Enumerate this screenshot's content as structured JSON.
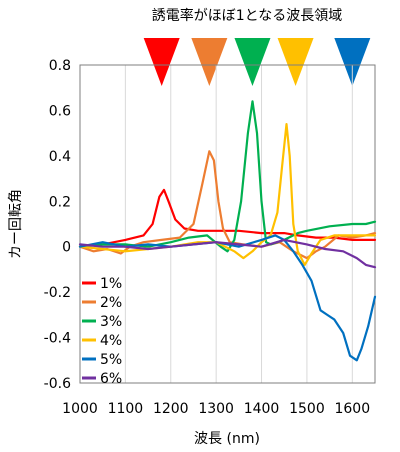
{
  "chart_data": {
    "type": "line",
    "title": "誘電率がほぼ1となる波長領域",
    "xlabel": "波長 (nm)",
    "ylabel": "カー回転角",
    "xlim": [
      1000,
      1650
    ],
    "ylim": [
      -0.6,
      0.8
    ],
    "xticks": [
      1000,
      1100,
      1200,
      1300,
      1400,
      1500,
      1600
    ],
    "xtick_labels": [
      "1000",
      "1100",
      "1200",
      "1300",
      "1400",
      "1500",
      "1600"
    ],
    "yticks": [
      -0.6,
      -0.4,
      -0.2,
      0,
      0.2,
      0.4,
      0.6,
      0.8
    ],
    "ytick_labels": [
      "-0.6",
      "-0.4",
      "-0.2",
      "0",
      "0.2",
      "0.4",
      "0.6",
      "0.8"
    ],
    "grid": "vertical",
    "legend_position": "bottom-left",
    "markers": [
      {
        "x": 1180,
        "color": "#ff0000"
      },
      {
        "x": 1285,
        "color": "#ed7d31"
      },
      {
        "x": 1380,
        "color": "#00b050"
      },
      {
        "x": 1475,
        "color": "#ffc000"
      },
      {
        "x": 1600,
        "color": "#0070c0"
      }
    ],
    "series": [
      {
        "name": "1%",
        "color": "#ff0000",
        "points": [
          [
            1000,
            0.0
          ],
          [
            1050,
            0.01
          ],
          [
            1100,
            0.03
          ],
          [
            1140,
            0.05
          ],
          [
            1160,
            0.1
          ],
          [
            1175,
            0.22
          ],
          [
            1185,
            0.25
          ],
          [
            1195,
            0.2
          ],
          [
            1210,
            0.12
          ],
          [
            1230,
            0.08
          ],
          [
            1260,
            0.07
          ],
          [
            1300,
            0.07
          ],
          [
            1350,
            0.07
          ],
          [
            1400,
            0.06
          ],
          [
            1450,
            0.06
          ],
          [
            1480,
            0.05
          ],
          [
            1520,
            0.04
          ],
          [
            1560,
            0.04
          ],
          [
            1600,
            0.03
          ],
          [
            1650,
            0.03
          ]
        ]
      },
      {
        "name": "2%",
        "color": "#ed7d31",
        "points": [
          [
            1000,
            0.0
          ],
          [
            1030,
            -0.02
          ],
          [
            1060,
            -0.01
          ],
          [
            1090,
            -0.03
          ],
          [
            1110,
            0.0
          ],
          [
            1140,
            0.02
          ],
          [
            1180,
            0.03
          ],
          [
            1220,
            0.04
          ],
          [
            1250,
            0.1
          ],
          [
            1270,
            0.28
          ],
          [
            1285,
            0.42
          ],
          [
            1295,
            0.38
          ],
          [
            1305,
            0.2
          ],
          [
            1315,
            0.08
          ],
          [
            1330,
            0.02
          ],
          [
            1360,
            0.01
          ],
          [
            1400,
            0.0
          ],
          [
            1440,
            0.02
          ],
          [
            1470,
            -0.02
          ],
          [
            1500,
            -0.05
          ],
          [
            1520,
            -0.02
          ],
          [
            1540,
            0.0
          ],
          [
            1570,
            0.05
          ],
          [
            1600,
            0.04
          ],
          [
            1630,
            0.05
          ],
          [
            1650,
            0.06
          ]
        ]
      },
      {
        "name": "3%",
        "color": "#00b050",
        "points": [
          [
            1000,
            0.0
          ],
          [
            1050,
            0.01
          ],
          [
            1100,
            0.01
          ],
          [
            1150,
            0.0
          ],
          [
            1200,
            0.02
          ],
          [
            1240,
            0.04
          ],
          [
            1280,
            0.05
          ],
          [
            1310,
            0.0
          ],
          [
            1325,
            -0.02
          ],
          [
            1340,
            0.03
          ],
          [
            1355,
            0.2
          ],
          [
            1370,
            0.5
          ],
          [
            1380,
            0.64
          ],
          [
            1390,
            0.5
          ],
          [
            1400,
            0.2
          ],
          [
            1410,
            0.02
          ],
          [
            1420,
            0.01
          ],
          [
            1450,
            0.03
          ],
          [
            1480,
            0.06
          ],
          [
            1500,
            0.07
          ],
          [
            1550,
            0.09
          ],
          [
            1600,
            0.1
          ],
          [
            1630,
            0.1
          ],
          [
            1650,
            0.11
          ]
        ]
      },
      {
        "name": "4%",
        "color": "#ffc000",
        "points": [
          [
            1000,
            0.0
          ],
          [
            1050,
            -0.01
          ],
          [
            1100,
            -0.02
          ],
          [
            1150,
            -0.01
          ],
          [
            1200,
            0.0
          ],
          [
            1260,
            0.02
          ],
          [
            1300,
            0.02
          ],
          [
            1340,
            -0.02
          ],
          [
            1360,
            -0.05
          ],
          [
            1380,
            -0.02
          ],
          [
            1400,
            0.02
          ],
          [
            1420,
            0.05
          ],
          [
            1435,
            0.15
          ],
          [
            1445,
            0.35
          ],
          [
            1455,
            0.54
          ],
          [
            1462,
            0.4
          ],
          [
            1470,
            0.1
          ],
          [
            1480,
            -0.02
          ],
          [
            1495,
            -0.08
          ],
          [
            1510,
            -0.03
          ],
          [
            1530,
            0.03
          ],
          [
            1560,
            0.05
          ],
          [
            1600,
            0.05
          ],
          [
            1650,
            0.05
          ]
        ]
      },
      {
        "name": "5%",
        "color": "#0070c0",
        "points": [
          [
            1000,
            0.0
          ],
          [
            1050,
            0.02
          ],
          [
            1100,
            0.0
          ],
          [
            1150,
            0.01
          ],
          [
            1200,
            0.0
          ],
          [
            1250,
            0.01
          ],
          [
            1300,
            0.02
          ],
          [
            1350,
            0.0
          ],
          [
            1400,
            0.03
          ],
          [
            1430,
            0.05
          ],
          [
            1450,
            0.03
          ],
          [
            1470,
            -0.02
          ],
          [
            1490,
            -0.08
          ],
          [
            1510,
            -0.15
          ],
          [
            1530,
            -0.28
          ],
          [
            1545,
            -0.3
          ],
          [
            1560,
            -0.32
          ],
          [
            1580,
            -0.38
          ],
          [
            1595,
            -0.48
          ],
          [
            1610,
            -0.5
          ],
          [
            1620,
            -0.45
          ],
          [
            1635,
            -0.35
          ],
          [
            1650,
            -0.22
          ]
        ]
      },
      {
        "name": "6%",
        "color": "#7030a0",
        "points": [
          [
            1000,
            0.01
          ],
          [
            1050,
            0.0
          ],
          [
            1100,
            0.0
          ],
          [
            1150,
            -0.01
          ],
          [
            1200,
            0.0
          ],
          [
            1250,
            0.01
          ],
          [
            1300,
            0.02
          ],
          [
            1350,
            0.01
          ],
          [
            1400,
            0.0
          ],
          [
            1450,
            0.03
          ],
          [
            1500,
            0.01
          ],
          [
            1540,
            -0.01
          ],
          [
            1580,
            -0.02
          ],
          [
            1610,
            -0.05
          ],
          [
            1630,
            -0.08
          ],
          [
            1650,
            -0.09
          ]
        ]
      }
    ]
  }
}
